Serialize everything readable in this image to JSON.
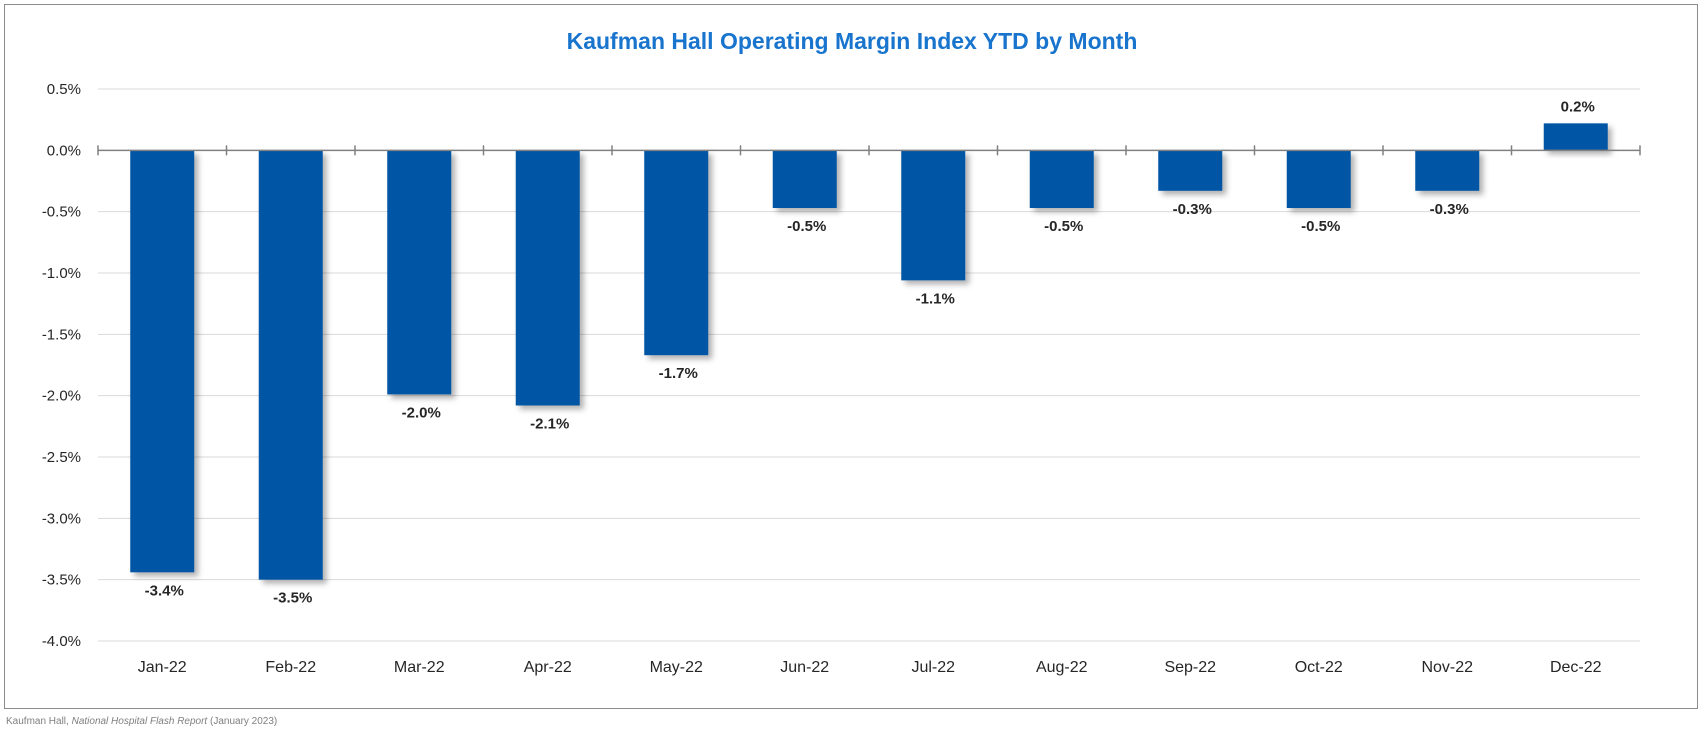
{
  "chart_data": {
    "type": "bar",
    "title": "Kaufman Hall Operating Margin Index YTD by Month",
    "categories": [
      "Jan-22",
      "Feb-22",
      "Mar-22",
      "Apr-22",
      "May-22",
      "Jun-22",
      "Jul-22",
      "Aug-22",
      "Sep-22",
      "Oct-22",
      "Nov-22",
      "Dec-22"
    ],
    "values": [
      -3.44,
      -3.5,
      -1.99,
      -2.08,
      -1.67,
      -0.47,
      -1.06,
      -0.47,
      -0.33,
      -0.47,
      -0.33,
      0.22
    ],
    "data_labels": [
      "-3.4%",
      "-3.5%",
      "-2.0%",
      "-2.1%",
      "-1.7%",
      "-0.5%",
      "-1.1%",
      "-0.5%",
      "-0.3%",
      "-0.5%",
      "-0.3%",
      "0.2%"
    ],
    "ylim": [
      -4.0,
      0.5
    ],
    "y_ticks": [
      0.5,
      0.0,
      -0.5,
      -1.0,
      -1.5,
      -2.0,
      -2.5,
      -3.0,
      -3.5,
      -4.0
    ],
    "y_tick_labels": [
      "0.5%",
      "0.0%",
      "-0.5%",
      "-1.0%",
      "-1.5%",
      "-2.0%",
      "-2.5%",
      "-3.0%",
      "-3.5%",
      "-4.0%"
    ],
    "grid": true,
    "legend": "none",
    "xlabel": "",
    "ylabel": ""
  },
  "colors": {
    "bar": "#0055A4",
    "title": "#1874CD",
    "grid": "#d9d9d9",
    "axis": "#808080",
    "text": "#262626"
  },
  "source": {
    "prefix": "Kaufman Hall, ",
    "title": "National Hospital Flash Report",
    "suffix": " (January 2023)"
  }
}
